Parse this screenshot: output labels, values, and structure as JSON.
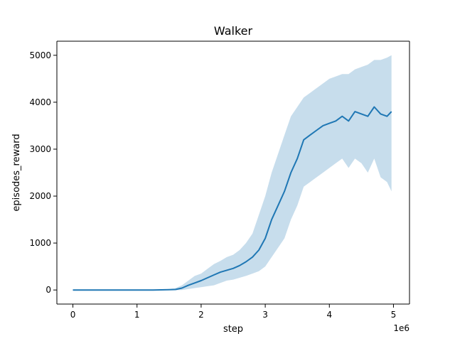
{
  "chart_data": {
    "type": "line",
    "title": "Walker",
    "xlabel": "step",
    "ylabel": "episodes_reward",
    "x_offset_label": "1e6",
    "xlim": [
      -0.25,
      5.25
    ],
    "ylim": [
      -300,
      5300
    ],
    "x_ticks": [
      0,
      1,
      2,
      3,
      4,
      5
    ],
    "y_ticks": [
      0,
      1000,
      2000,
      3000,
      4000,
      5000
    ],
    "grid": false,
    "legend": "none",
    "colors": {
      "line": "#1f77b4",
      "band": "#1f77b4",
      "band_opacity": 0.25
    },
    "series": [
      {
        "x": [
          0,
          0.25,
          0.5,
          0.75,
          1.0,
          1.25,
          1.5,
          1.6,
          1.7,
          1.8,
          1.9,
          2.0,
          2.1,
          2.2,
          2.3,
          2.4,
          2.5,
          2.6,
          2.7,
          2.8,
          2.9,
          3.0,
          3.1,
          3.2,
          3.3,
          3.4,
          3.5,
          3.6,
          3.7,
          3.8,
          3.9,
          4.0,
          4.1,
          4.2,
          4.3,
          4.4,
          4.5,
          4.6,
          4.7,
          4.8,
          4.9,
          4.97
        ],
        "y": [
          0,
          0,
          0,
          0,
          0,
          0,
          5,
          10,
          40,
          100,
          150,
          200,
          260,
          320,
          380,
          420,
          460,
          520,
          600,
          700,
          850,
          1100,
          1500,
          1800,
          2100,
          2500,
          2800,
          3200,
          3300,
          3400,
          3500,
          3550,
          3600,
          3700,
          3600,
          3800,
          3750,
          3700,
          3900,
          3750,
          3700,
          3800
        ],
        "lower": [
          0,
          0,
          0,
          0,
          0,
          0,
          -5,
          -5,
          0,
          20,
          40,
          60,
          80,
          100,
          150,
          200,
          220,
          260,
          300,
          350,
          400,
          500,
          700,
          900,
          1100,
          1500,
          1800,
          2200,
          2300,
          2400,
          2500,
          2600,
          2700,
          2800,
          2600,
          2800,
          2700,
          2500,
          2800,
          2400,
          2300,
          2100
        ],
        "upper": [
          0,
          0,
          0,
          0,
          0,
          0,
          20,
          40,
          100,
          200,
          300,
          350,
          450,
          550,
          620,
          700,
          750,
          850,
          1000,
          1200,
          1600,
          2000,
          2500,
          2900,
          3300,
          3700,
          3900,
          4100,
          4200,
          4300,
          4400,
          4500,
          4550,
          4600,
          4600,
          4700,
          4750,
          4800,
          4900,
          4900,
          4950,
          5000
        ]
      }
    ]
  }
}
